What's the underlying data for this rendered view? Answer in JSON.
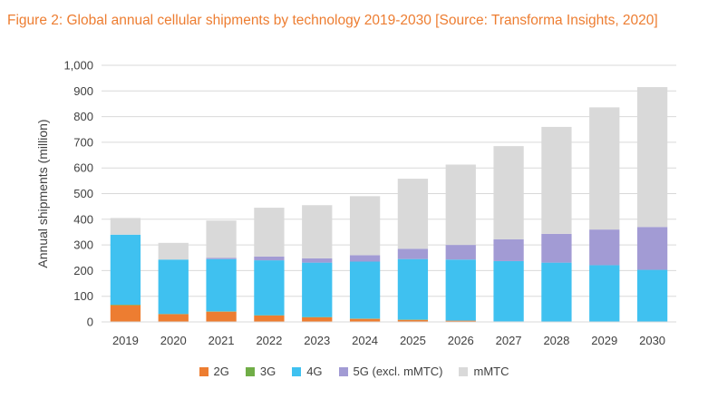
{
  "title": "Figure 2: Global annual cellular shipments by technology 2019-2030 [Source: Transforma Insights, 2020]",
  "chart_data": {
    "type": "bar",
    "stacked": true,
    "title": "Figure 2: Global annual cellular shipments by technology 2019-2030 [Source: Transforma Insights, 2020]",
    "xlabel": "",
    "ylabel": "Annual shipments (million)",
    "ylim": [
      0,
      1000
    ],
    "yticks": [
      0,
      100,
      200,
      300,
      400,
      500,
      600,
      700,
      800,
      900,
      1000
    ],
    "ytick_labels": [
      "0",
      "100",
      "200",
      "300",
      "400",
      "500",
      "600",
      "700",
      "800",
      "900",
      "1,000"
    ],
    "grid": true,
    "legend_position": "bottom",
    "categories": [
      "2019",
      "2020",
      "2021",
      "2022",
      "2023",
      "2024",
      "2025",
      "2026",
      "2027",
      "2028",
      "2029",
      "2030"
    ],
    "series": [
      {
        "name": "2G",
        "color": "#ED7D31",
        "values": [
          65,
          30,
          40,
          25,
          18,
          12,
          8,
          5,
          2,
          1,
          1,
          0
        ]
      },
      {
        "name": "3G",
        "color": "#70AD47",
        "values": [
          2,
          1,
          1,
          1,
          1,
          1,
          1,
          0,
          0,
          0,
          0,
          0
        ]
      },
      {
        "name": "4G",
        "color": "#3FC1F0",
        "values": [
          273,
          212,
          204,
          214,
          212,
          222,
          236,
          238,
          235,
          230,
          220,
          203
        ]
      },
      {
        "name": "5G (excl. mMTC)",
        "color": "#A29BD4",
        "values": [
          0,
          0,
          5,
          15,
          17,
          25,
          40,
          57,
          85,
          112,
          139,
          167
        ]
      },
      {
        "name": "mMTC",
        "color": "#D9D9D9",
        "values": [
          65,
          65,
          145,
          190,
          207,
          230,
          273,
          313,
          363,
          417,
          476,
          545
        ]
      }
    ]
  }
}
